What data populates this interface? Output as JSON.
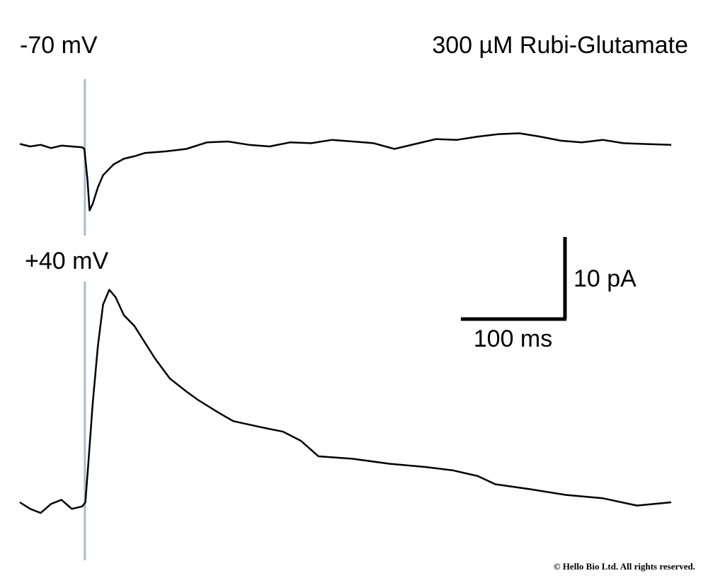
{
  "title": "300 µM Rubi-Glutamate",
  "chart_data": [
    {
      "type": "line",
      "title": "-70 mV",
      "color": "#000000",
      "stimulus_time": 62.5,
      "xlim": [
        0,
        630
      ],
      "ylim": [
        -10,
        4
      ],
      "x": [
        0,
        10,
        20,
        30,
        40,
        50,
        60,
        62,
        65,
        67,
        70,
        75,
        80,
        90,
        100,
        110,
        120,
        140,
        160,
        180,
        200,
        220,
        240,
        260,
        280,
        300,
        320,
        340,
        360,
        380,
        400,
        420,
        440,
        460,
        480,
        500,
        520,
        540,
        560,
        580,
        600,
        626
      ],
      "values": [
        0.3,
        0,
        0.2,
        -0.2,
        0.1,
        0,
        -0.1,
        -0.3,
        -4,
        -7.8,
        -7,
        -5,
        -3.5,
        -2.2,
        -1.5,
        -1.2,
        -0.8,
        -0.6,
        -0.3,
        0.5,
        0.6,
        0.2,
        0,
        0.5,
        0.4,
        0.8,
        0.6,
        0.4,
        -0.3,
        0.3,
        0.9,
        0.8,
        1.2,
        1.5,
        1.6,
        1.2,
        0.7,
        0.5,
        0.8,
        0.4,
        0.3,
        0.2
      ]
    },
    {
      "type": "line",
      "title": "+40 mV",
      "color": "#000000",
      "stimulus_time": 62.5,
      "xlim": [
        0,
        630
      ],
      "ylim": [
        -2,
        26
      ],
      "x": [
        0,
        10,
        20,
        30,
        40,
        50,
        60,
        63,
        66,
        70,
        75,
        80,
        86,
        92,
        100,
        110,
        120,
        130,
        144,
        160,
        171,
        190,
        205,
        230,
        253,
        270,
        287,
        320,
        355,
        390,
        416,
        440,
        457,
        490,
        525,
        560,
        593,
        626
      ],
      "values": [
        0,
        -0.8,
        -1.3,
        -0.2,
        0.3,
        -0.8,
        -0.5,
        0,
        5,
        12,
        19,
        24.1,
        25.9,
        25,
        22.8,
        21.5,
        19.5,
        17.5,
        15.1,
        13.5,
        12.5,
        11,
        9.9,
        9.2,
        8.6,
        7.5,
        5.6,
        5.3,
        4.7,
        4.3,
        3.9,
        3.2,
        2.2,
        1.6,
        0.9,
        0.5,
        -0.4,
        0
      ]
    }
  ],
  "scale_bar": {
    "x_length": 100,
    "x_label": "100 ms",
    "y_length": 10,
    "y_label": "10 pA"
  },
  "footer": "© Hello Bio Ltd. All rights reserved."
}
